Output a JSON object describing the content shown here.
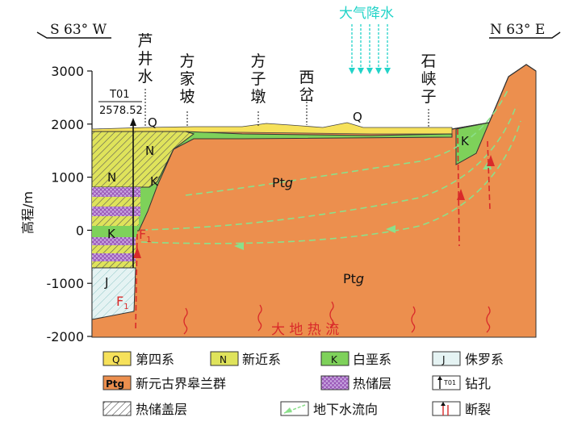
{
  "direction": {
    "left": "S 63° W",
    "right": "N 63° E"
  },
  "y_axis": {
    "label": "高程/m",
    "ticks": [
      "3000",
      "2000",
      "1000",
      "0",
      "-1000",
      "-2000"
    ]
  },
  "places": [
    {
      "id": "luzhuishui",
      "chars": [
        "芦",
        "井",
        "水"
      ]
    },
    {
      "id": "fangjiapo",
      "chars": [
        "方",
        "家",
        "坡"
      ]
    },
    {
      "id": "fangzidun",
      "chars": [
        "方",
        "子",
        "墩"
      ]
    },
    {
      "id": "xicha",
      "chars": [
        "西",
        "岔"
      ]
    },
    {
      "id": "shixiazi",
      "chars": [
        "石",
        "峡",
        "子"
      ]
    }
  ],
  "precipitation": "大气降水",
  "borehole": {
    "name": "T01",
    "elevation": "2578.52"
  },
  "strata_labels": {
    "Q": "Q",
    "N": "N",
    "K": "K",
    "J": "J",
    "Ptg": "Pt",
    "g": "g"
  },
  "fault": {
    "label": "F",
    "subscript": "1"
  },
  "heat_flow": "大 地 热 流",
  "legend": {
    "items": [
      {
        "symbol": "Q",
        "label": "第四系",
        "color": "#f6e15a"
      },
      {
        "symbol": "N",
        "label": "新近系",
        "color": "#dfe35b"
      },
      {
        "symbol": "K",
        "label": "白垩系",
        "color": "#7ed15a"
      },
      {
        "symbol": "J",
        "label": "侏罗系",
        "color": "#e5f3f3"
      },
      {
        "symbol": "Ptg",
        "label": "新元古界皋兰群",
        "color": "#ec8f4e"
      },
      {
        "symbol": "",
        "label": "热储层",
        "color": "#c8a6e0"
      },
      {
        "symbol": "T01",
        "label": "钻孔",
        "color": "#ffffff"
      },
      {
        "symbol": "",
        "label": "热储盖层",
        "color": "#ffffff"
      },
      {
        "symbol": "",
        "label": "地下水流向",
        "color": "#ffffff"
      },
      {
        "symbol": "",
        "label": "断裂",
        "color": "#ffffff"
      }
    ]
  }
}
